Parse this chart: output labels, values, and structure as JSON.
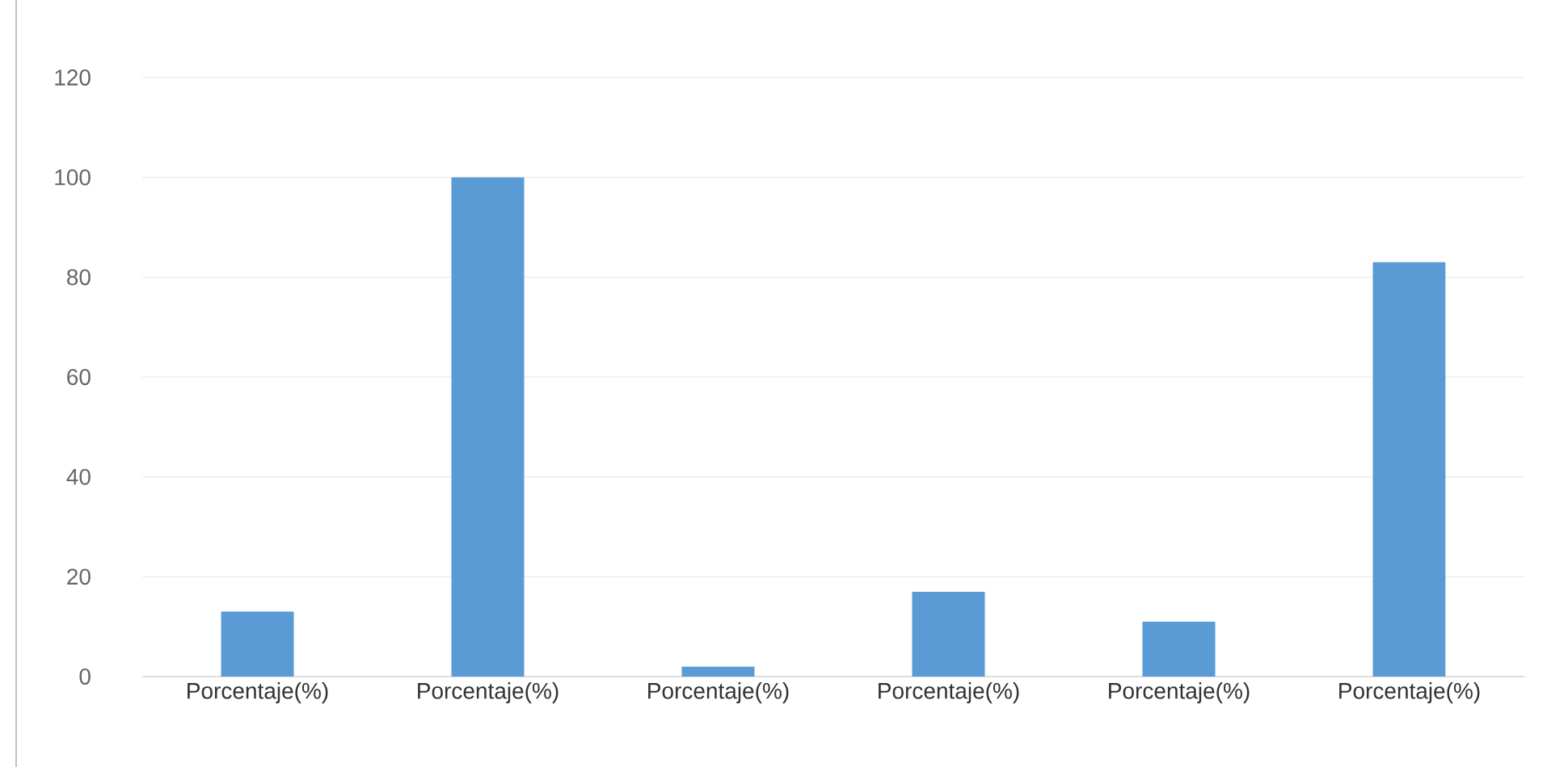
{
  "chart_data": {
    "type": "bar",
    "categories": [
      "Porcentaje(%)",
      "Porcentaje(%)",
      "Porcentaje(%)",
      "Porcentaje(%)",
      "Porcentaje(%)",
      "Porcentaje(%)"
    ],
    "values": [
      13,
      100,
      2,
      17,
      11,
      83
    ],
    "color": "#5b9bd5",
    "ylim": [
      0,
      120
    ],
    "yticks": [
      0,
      20,
      40,
      60,
      80,
      100,
      120
    ],
    "grid": "y"
  }
}
